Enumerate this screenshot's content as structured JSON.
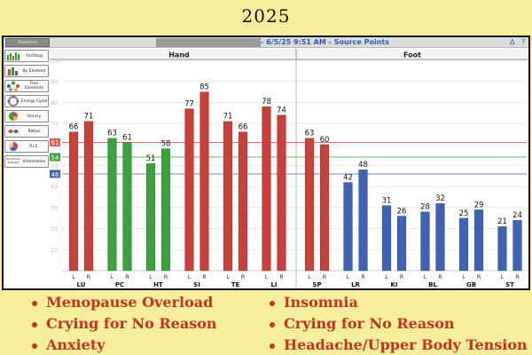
{
  "year_label": "2025",
  "window": {
    "baseline_label": "Baseline",
    "session_label": "- 6/5/25 9:51 AM - Source Points",
    "info_icon": "triangle-icon",
    "help_label": "?"
  },
  "sidebar": {
    "items": [
      {
        "label": "Yin/Yang",
        "icon": "yin-yang-icon"
      },
      {
        "label": "By Element",
        "icon": "element-icon"
      },
      {
        "label": "Five Elements",
        "icon": "five-elements-icon"
      },
      {
        "label": "Energy Cycle",
        "icon": "energy-cycle-icon"
      },
      {
        "label": "Horary",
        "icon": "horary-icon"
      },
      {
        "label": "Ratios",
        "icon": "ratios-icon"
      },
      {
        "label": "P.I.E.",
        "icon": "pie-icon"
      },
      {
        "label": "Information",
        "icon": "information-icon",
        "badge": "Worksheet Detailed"
      }
    ]
  },
  "chart_data": {
    "type": "bar",
    "ylim": [
      0,
      100
    ],
    "yticks": [
      10,
      20,
      30,
      40,
      50,
      60,
      70,
      80,
      90,
      100
    ],
    "grid": true,
    "sections": [
      {
        "label": "Hand",
        "groups": [
          "LU",
          "PC",
          "HT",
          "SI",
          "TE",
          "LI"
        ]
      },
      {
        "label": "Foot",
        "groups": [
          "SP",
          "LR",
          "KI",
          "BL",
          "GB",
          "ST"
        ]
      }
    ],
    "groups": [
      {
        "name": "LU",
        "left": 66,
        "right": 71,
        "color": "red"
      },
      {
        "name": "PC",
        "left": 63,
        "right": 61,
        "color": "green"
      },
      {
        "name": "HT",
        "left": 51,
        "right": 58,
        "color": "green"
      },
      {
        "name": "SI",
        "left": 77,
        "right": 85,
        "color": "red"
      },
      {
        "name": "TE",
        "left": 71,
        "right": 66,
        "color": "red"
      },
      {
        "name": "LI",
        "left": 78,
        "right": 74,
        "color": "red"
      },
      {
        "name": "SP",
        "left": 63,
        "right": 60,
        "color": "red"
      },
      {
        "name": "LR",
        "left": 42,
        "right": 48,
        "color": "blue"
      },
      {
        "name": "KI",
        "left": 31,
        "right": 26,
        "color": "blue"
      },
      {
        "name": "BL",
        "left": 28,
        "right": 32,
        "color": "blue"
      },
      {
        "name": "GB",
        "left": 25,
        "right": 29,
        "color": "blue"
      },
      {
        "name": "ST",
        "left": 21,
        "right": 24,
        "color": "blue"
      }
    ],
    "side_labels": [
      "L",
      "R"
    ],
    "reference_lines": [
      {
        "value": 61,
        "color": "red"
      },
      {
        "value": 54,
        "color": "green"
      },
      {
        "value": 46,
        "color": "blue"
      }
    ],
    "colors": {
      "red": "#c8403a",
      "green": "#3ba13e",
      "blue": "#3f62b4",
      "red_line": "#e05a5a",
      "green_line": "#3ba13e",
      "blue_line": "#3f62b4",
      "grid": "#e2e2e2",
      "tick": "#c0c0c0"
    }
  },
  "symptoms": {
    "left": [
      "Menopause Overload",
      "Crying for No Reason",
      "Anxiety"
    ],
    "right": [
      "Insomnia",
      "Crying for No Reason",
      "Headache/Upper Body Tension"
    ]
  },
  "accent": "#c8321e"
}
